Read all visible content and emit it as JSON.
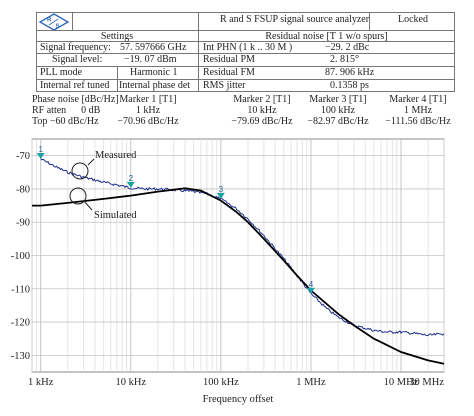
{
  "header": {
    "title": "R and S FSUP signal source analyzer",
    "status": "Locked",
    "settings_label": "Settings",
    "residual_noise_label": "Residual noise [T 1 w/o spurs]",
    "rows": [
      {
        "k1": "Signal frequency:",
        "v1": "57. 597666 GHz",
        "k2": "Int PHN (1 k .. 30 M )",
        "v2": "−29. 2 dBc"
      },
      {
        "k1": "Signal level:",
        "v1": "−19. 07 dBm",
        "k2": "Residual PM",
        "v2": "2. 815°"
      },
      {
        "k1": "PLL mode",
        "v1": "Harmonic 1",
        "k2": "Residual FM",
        "v2": "87. 906 kHz"
      },
      {
        "k1": "Internal ref tuned",
        "v1": "Internal phase det",
        "k2": "RMS jitter",
        "v2": "0.1358 ps"
      }
    ]
  },
  "markers_table": {
    "rows": [
      [
        "Phase noise [dBc/Hz]",
        "Marker 1 [T1]",
        "Marker 2 [T1]",
        "Marker 3 [T1]",
        "Marker 4 [T1]"
      ],
      [
        "RF atten      0 dB",
        "1 kHz",
        "10 kHz",
        "100 kHz",
        "1 MHz"
      ],
      [
        "Top  −60 dBc/Hz",
        "−70.96 dBc/Hz",
        "−79.69 dBc/Hz",
        "−82.97 dBc/Hz",
        "−111.56 dBc/Hz"
      ]
    ]
  },
  "chart_data": {
    "type": "line",
    "xlabel": "Frequency offset",
    "ylabel": "",
    "xscale": "log",
    "xlim": [
      800,
      30000000
    ],
    "ylim": [
      -135,
      -65
    ],
    "grid": true,
    "x_ticks": [
      {
        "value": 1000,
        "label": "1 kHz"
      },
      {
        "value": 10000,
        "label": "10 kHz"
      },
      {
        "value": 100000,
        "label": "100 kHz"
      },
      {
        "value": 1000000,
        "label": "1 MHz"
      },
      {
        "value": 10000000,
        "label": "10 MHz"
      },
      {
        "value": 30000000,
        "label": "30 MHz"
      }
    ],
    "y_ticks": [
      -70,
      -80,
      -90,
      -100,
      -110,
      -120,
      -130
    ],
    "annotations": [
      "Measured",
      "Simulated"
    ],
    "series": [
      {
        "name": "Measured",
        "color": "#1f2f8f",
        "x": [
          1000,
          1500,
          2000,
          3000,
          5000,
          7000,
          10000,
          15000,
          20000,
          30000,
          50000,
          70000,
          100000,
          150000,
          200000,
          300000,
          500000,
          700000,
          1000000,
          1500000,
          2000000,
          3000000,
          5000000,
          7000000,
          10000000,
          15000000,
          20000000,
          30000000
        ],
        "y": [
          -71,
          -73.5,
          -75,
          -76.5,
          -78,
          -78.8,
          -79.7,
          -80,
          -80,
          -80.3,
          -80.8,
          -81.5,
          -83,
          -86,
          -89,
          -94,
          -101,
          -106,
          -111.5,
          -116,
          -118.5,
          -121,
          -122.5,
          -123,
          -123,
          -123.5,
          -124,
          -123.5
        ]
      },
      {
        "name": "Simulated",
        "color": "#000000",
        "x": [
          800,
          1000,
          2000,
          5000,
          10000,
          20000,
          40000,
          60000,
          100000,
          150000,
          200000,
          300000,
          500000,
          700000,
          1000000,
          2000000,
          3000000,
          5000000,
          10000000,
          20000000,
          30000000
        ],
        "y": [
          -85,
          -85,
          -84.2,
          -83,
          -82,
          -80.8,
          -79.8,
          -80.5,
          -83.5,
          -87,
          -90,
          -95,
          -101.5,
          -106,
          -110.5,
          -117.5,
          -121,
          -125,
          -129,
          -131.5,
          -132.5
        ]
      }
    ],
    "markers": [
      {
        "label": "1",
        "x": 1000,
        "y": -71
      },
      {
        "label": "2",
        "x": 10000,
        "y": -79.7
      },
      {
        "label": "3",
        "x": 100000,
        "y": -83
      },
      {
        "label": "4",
        "x": 1000000,
        "y": -111.5
      }
    ],
    "marker_color": "#1aa3a3"
  }
}
